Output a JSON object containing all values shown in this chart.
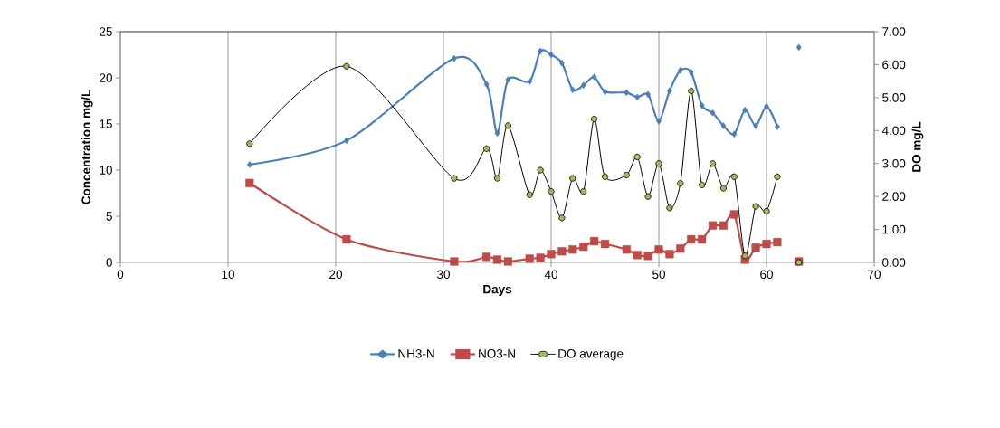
{
  "chart_data": {
    "type": "line",
    "xlabel": "Days",
    "ylabel": "Concentration mg/L",
    "y2label": "DO mg/L",
    "x": [
      12,
      21,
      31,
      34,
      35,
      36,
      38,
      39,
      40,
      41,
      42,
      43,
      44,
      45,
      47,
      48,
      49,
      50,
      51,
      52,
      53,
      54,
      55,
      56,
      57,
      58,
      59,
      60,
      61,
      62,
      63
    ],
    "series": [
      {
        "name": "NH3-N",
        "color": "#4a7ebb",
        "marker": "diamond",
        "values": [
          10.6,
          13.2,
          22.1,
          19.3,
          14.0,
          19.8,
          19.6,
          22.9,
          22.5,
          21.6,
          18.7,
          19.2,
          20.1,
          18.5,
          18.4,
          17.9,
          18.2,
          15.3,
          18.6,
          20.8,
          20.6,
          17.0,
          16.2,
          14.8,
          13.9,
          16.5,
          14.8,
          16.9,
          14.7,
          null,
          23.3
        ]
      },
      {
        "name": "NO3-N",
        "color": "#be4b48",
        "marker": "square",
        "values": [
          8.6,
          2.5,
          0.1,
          0.6,
          0.3,
          0.1,
          0.4,
          0.5,
          0.9,
          1.2,
          1.4,
          1.7,
          2.3,
          2.0,
          1.4,
          0.8,
          0.7,
          1.4,
          0.9,
          1.5,
          2.5,
          2.5,
          4.0,
          4.0,
          5.2,
          0.3,
          1.6,
          2.0,
          2.2,
          null,
          0.1
        ]
      },
      {
        "name": "DO average",
        "color": "#9bbb59",
        "marker": "circle",
        "axis": "y2",
        "values": [
          3.6,
          5.95,
          2.55,
          3.45,
          2.55,
          4.15,
          2.05,
          2.8,
          2.15,
          1.35,
          2.55,
          2.15,
          4.35,
          2.6,
          2.65,
          3.2,
          2.0,
          3.0,
          1.65,
          2.4,
          5.2,
          2.35,
          3.0,
          2.25,
          2.6,
          0.2,
          1.7,
          1.55,
          2.6,
          null,
          0.0
        ]
      }
    ],
    "xlim": [
      0,
      70
    ],
    "xticks": [
      0,
      10,
      20,
      30,
      40,
      50,
      60,
      70
    ],
    "ylim": [
      0,
      25
    ],
    "yticks": [
      0,
      5,
      10,
      15,
      20,
      25
    ],
    "y2lim": [
      0,
      7
    ],
    "y2ticks": [
      {
        "value": 0,
        "label": "0.00"
      },
      {
        "value": 1,
        "label": "1.00"
      },
      {
        "value": 2,
        "label": "2.00"
      },
      {
        "value": 3,
        "label": "3.00"
      },
      {
        "value": 4,
        "label": "4.00"
      },
      {
        "value": 5,
        "label": "5.00"
      },
      {
        "value": 6,
        "label": "6.00"
      },
      {
        "value": 7,
        "label": "7.00"
      }
    ],
    "grid": "x",
    "legend": "bottom",
    "line_style": "solid"
  }
}
